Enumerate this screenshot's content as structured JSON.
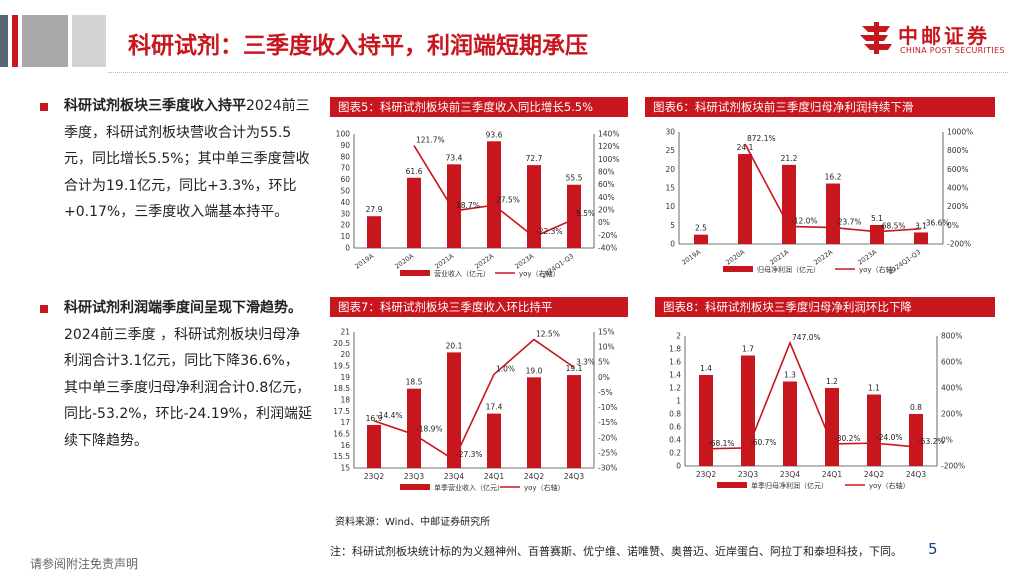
{
  "header": {
    "title": "科研试剂：三季度收入持平，利润端短期承压",
    "logo_cn": "中邮证券",
    "logo_en": "CHINA POST SECURITIES"
  },
  "colors": {
    "brand_red": "#c8161e",
    "dark_gray": "#5a6573",
    "mid_gray": "#a9a9a9",
    "light_gray": "#d3d3d3"
  },
  "sections": [
    {
      "heading": "科研试剂板块三季度收入持平",
      "body": "2024前三季度，科研试剂板块营收合计为55.5元，同比增长5.5%；其中单三季度营收合计为19.1亿元，同比+3.3%，环比+0.17%，三季度收入端基本持平。"
    },
    {
      "heading": "科研试剂利润端季度间呈现下滑趋势。",
      "body": "2024前三季度 ，科研试剂板块归母净利润合计3.1亿元，同比下降36.6%，其中单三季度归母净利润合计0.8亿元，同比-53.2%，环比-24.19%，利润端延续下降趋势。"
    }
  ],
  "footer": {
    "source": "资料来源：Wind、中邮证券研究所",
    "note": "注：科研试剂板块统计标的为义翘神州、百普赛斯、优宁维、诺唯赞、奥普迈、近岸蛋白、阿拉丁和泰坦科技，下同。",
    "page": "5",
    "disclaimer": "请参阅附注免责声明"
  },
  "chart_data": [
    {
      "id": "chart5",
      "type": "bar",
      "title": "图表5：科研试剂板块前三季度收入同比增长5.5%",
      "categories": [
        "2019A",
        "2020A",
        "2021A",
        "2022A",
        "2023A",
        "2024Q1-Q3"
      ],
      "series": [
        {
          "name": "营业收入（亿元）",
          "type": "bar",
          "axis": "left",
          "values": [
            27.9,
            61.6,
            73.4,
            93.6,
            72.7,
            55.5
          ],
          "labels": [
            "27.9",
            "61.6",
            "73.4",
            "93.6",
            "72.7",
            "55.5"
          ]
        },
        {
          "name": "yoy（右轴）",
          "type": "line",
          "axis": "right",
          "values": [
            null,
            121.7,
            18.7,
            27.5,
            -22.3,
            5.5
          ],
          "labels": [
            "",
            "121.7%",
            "18.7%",
            "27.5%",
            "-22.3%",
            "5.5%"
          ]
        }
      ],
      "left_axis": {
        "min": 0,
        "max": 100,
        "ticks": [
          "0",
          "10",
          "20",
          "30",
          "40",
          "50",
          "60",
          "70",
          "80",
          "90",
          "100"
        ]
      },
      "right_axis": {
        "min": -40,
        "max": 140,
        "ticks": [
          "-40%",
          "-20%",
          "0%",
          "20%",
          "40%",
          "60%",
          "80%",
          "100%",
          "120%",
          "140%"
        ]
      }
    },
    {
      "id": "chart6",
      "type": "bar",
      "title": "图表6：科研试剂板块前三季度归母净利润持续下滑",
      "categories": [
        "2019A",
        "2020A",
        "2021A",
        "2022A",
        "2023A",
        "2024Q1-Q3"
      ],
      "series": [
        {
          "name": "归母净利润（亿元）",
          "type": "bar",
          "axis": "left",
          "values": [
            2.5,
            24.1,
            21.2,
            16.2,
            5.1,
            3.1
          ],
          "labels": [
            "2.5",
            "24.1",
            "21.2",
            "16.2",
            "5.1",
            "3.1"
          ]
        },
        {
          "name": "yoy（右轴）",
          "type": "line",
          "axis": "right",
          "values": [
            null,
            872.1,
            -12.0,
            -23.7,
            -68.5,
            -36.6
          ],
          "labels": [
            "",
            "872.1%",
            "-12.0%",
            "-23.7%",
            "-68.5%",
            "-36.6%"
          ]
        }
      ],
      "left_axis": {
        "min": 0,
        "max": 30,
        "ticks": [
          "0",
          "5",
          "10",
          "15",
          "20",
          "25",
          "30"
        ]
      },
      "right_axis": {
        "min": -200,
        "max": 1000,
        "ticks": [
          "-200%",
          "0%",
          "200%",
          "400%",
          "600%",
          "800%",
          "1000%"
        ]
      }
    },
    {
      "id": "chart7",
      "type": "bar",
      "title": "图表7：科研试剂板块三季度收入环比持平",
      "categories": [
        "23Q2",
        "23Q3",
        "23Q4",
        "24Q1",
        "24Q2",
        "24Q3"
      ],
      "series": [
        {
          "name": "单季营业收入（亿元）",
          "type": "bar",
          "axis": "left",
          "values": [
            16.9,
            18.5,
            20.1,
            17.4,
            19.0,
            19.1
          ],
          "labels": [
            "16.9",
            "18.5",
            "20.1",
            "17.4",
            "19.0",
            "19.1"
          ]
        },
        {
          "name": "yoy（右轴）",
          "type": "line",
          "axis": "right",
          "values": [
            -14.4,
            -18.9,
            -27.3,
            1.0,
            12.5,
            3.3
          ],
          "labels": [
            "-14.4%",
            "-18.9%",
            "-27.3%",
            "1.0%",
            "12.5%",
            "3.3%"
          ]
        }
      ],
      "left_axis": {
        "min": 15,
        "max": 21,
        "ticks": [
          "15",
          "15.5",
          "16",
          "16.5",
          "17",
          "17.5",
          "18",
          "18.5",
          "19",
          "19.5",
          "20",
          "20.5",
          "21"
        ]
      },
      "right_axis": {
        "min": -30,
        "max": 15,
        "ticks": [
          "-30%",
          "-25%",
          "-20%",
          "-15%",
          "-10%",
          "-5%",
          "0%",
          "5%",
          "10%",
          "15%"
        ]
      }
    },
    {
      "id": "chart8",
      "type": "bar",
      "title": "图表8：科研试剂板块三季度归母净利润环比下降",
      "categories": [
        "23Q2",
        "23Q3",
        "23Q4",
        "24Q1",
        "24Q2",
        "24Q3"
      ],
      "series": [
        {
          "name": "单季归母净利润（亿元）",
          "type": "bar",
          "axis": "left",
          "values": [
            1.4,
            1.7,
            1.3,
            1.2,
            1.1,
            0.8
          ],
          "labels": [
            "1.4",
            "1.7",
            "1.3",
            "1.2",
            "1.1",
            "0.8"
          ]
        },
        {
          "name": "yoy（右轴）",
          "type": "line",
          "axis": "right",
          "values": [
            -68.1,
            -60.7,
            747.0,
            -30.2,
            -24.0,
            -53.2
          ],
          "labels": [
            "-68.1%",
            "-60.7%",
            "747.0%",
            "-30.2%",
            "-24.0%",
            "-53.2%"
          ]
        }
      ],
      "left_axis": {
        "min": 0,
        "max": 2,
        "ticks": [
          "0",
          "0.2",
          "0.4",
          "0.6",
          "0.8",
          "1",
          "1.2",
          "1.4",
          "1.6",
          "1.8",
          "2"
        ]
      },
      "right_axis": {
        "min": -200,
        "max": 800,
        "ticks": [
          "-200%",
          "0%",
          "200%",
          "400%",
          "600%",
          "800%"
        ]
      }
    }
  ]
}
